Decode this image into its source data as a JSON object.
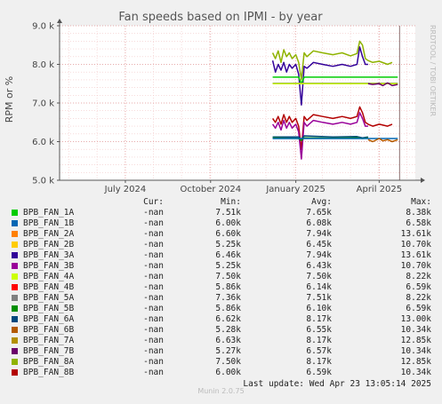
{
  "title": "Fan speeds based on IPMI - by year",
  "ylabel": "RPM or %",
  "watermark": "RRDTOOL / TOBI OETIKER",
  "footer_brand": "Munin 2.0.75",
  "last_update": "Last update: Wed Apr 23 13:05:14 2025",
  "legend_headers": {
    "cur": "Cur:",
    "min": "Min:",
    "avg": "Avg:",
    "max": "Max:"
  },
  "legend": [
    {
      "name": "BPB_FAN_1A",
      "color": "#00cc00",
      "cur": "-nan",
      "min": "7.51k",
      "avg": "7.65k",
      "max": "8.38k"
    },
    {
      "name": "BPB_FAN_1B",
      "color": "#0066b3",
      "cur": "-nan",
      "min": "6.00k",
      "avg": "6.08k",
      "max": "6.58k"
    },
    {
      "name": "BPB_FAN_2A",
      "color": "#ff8000",
      "cur": "-nan",
      "min": "6.60k",
      "avg": "7.94k",
      "max": "13.61k"
    },
    {
      "name": "BPB_FAN_2B",
      "color": "#ffcc00",
      "cur": "-nan",
      "min": "5.25k",
      "avg": "6.45k",
      "max": "10.70k"
    },
    {
      "name": "BPB_FAN_3A",
      "color": "#330099",
      "cur": "-nan",
      "min": "6.46k",
      "avg": "7.94k",
      "max": "13.61k"
    },
    {
      "name": "BPB_FAN_3B",
      "color": "#990099",
      "cur": "-nan",
      "min": "5.25k",
      "avg": "6.43k",
      "max": "10.70k"
    },
    {
      "name": "BPB_FAN_4A",
      "color": "#ccff00",
      "cur": "-nan",
      "min": "7.50k",
      "avg": "7.50k",
      "max": "8.22k"
    },
    {
      "name": "BPB_FAN_4B",
      "color": "#ff0000",
      "cur": "-nan",
      "min": "5.86k",
      "avg": "6.14k",
      "max": "6.59k"
    },
    {
      "name": "BPB_FAN_5A",
      "color": "#808080",
      "cur": "-nan",
      "min": "7.36k",
      "avg": "7.51k",
      "max": "8.22k"
    },
    {
      "name": "BPB_FAN_5B",
      "color": "#008f00",
      "cur": "-nan",
      "min": "5.86k",
      "avg": "6.10k",
      "max": "6.59k"
    },
    {
      "name": "BPB_FAN_6A",
      "color": "#00487d",
      "cur": "-nan",
      "min": "6.62k",
      "avg": "8.17k",
      "max": "13.00k"
    },
    {
      "name": "BPB_FAN_6B",
      "color": "#b35a00",
      "cur": "-nan",
      "min": "5.28k",
      "avg": "6.55k",
      "max": "10.34k"
    },
    {
      "name": "BPB_FAN_7A",
      "color": "#b38f00",
      "cur": "-nan",
      "min": "6.63k",
      "avg": "8.17k",
      "max": "12.85k"
    },
    {
      "name": "BPB_FAN_7B",
      "color": "#6b006b",
      "cur": "-nan",
      "min": "5.27k",
      "avg": "6.57k",
      "max": "10.34k"
    },
    {
      "name": "BPB_FAN_8A",
      "color": "#8fb300",
      "cur": "-nan",
      "min": "7.50k",
      "avg": "8.17k",
      "max": "12.85k"
    },
    {
      "name": "BPB_FAN_8B",
      "color": "#b30000",
      "cur": "-nan",
      "min": "6.00k",
      "avg": "6.59k",
      "max": "10.34k"
    }
  ],
  "chart_data": {
    "type": "line",
    "title": "Fan speeds based on IPMI - by year",
    "xlabel": "",
    "ylabel": "RPM or %",
    "ylim": [
      5000,
      9000
    ],
    "y_ticks": [
      5000,
      6000,
      7000,
      8000,
      9000
    ],
    "y_tick_labels": [
      "5.0 k",
      "6.0 k",
      "7.0 k",
      "8.0 k",
      "9.0 k"
    ],
    "xlim": [
      "2024-04-21",
      "2025-05-10"
    ],
    "x_ticks": [
      "2024-07-01",
      "2024-10-01",
      "2025-01-01",
      "2025-04-01"
    ],
    "x_tick_labels": [
      "July 2024",
      "October 2024",
      "January 2025",
      "April 2025"
    ],
    "grid": true,
    "now_marker": "2025-04-23",
    "series": [
      {
        "name": "BPB_FAN_8A",
        "color": "#8fb300",
        "x": [
          "2024-12-07",
          "2024-12-10",
          "2024-12-13",
          "2024-12-16",
          "2024-12-19",
          "2024-12-22",
          "2024-12-25",
          "2024-12-28",
          "2025-01-01",
          "2025-01-04",
          "2025-01-07",
          "2025-01-10",
          "2025-01-13",
          "2025-01-20",
          "2025-01-30",
          "2025-02-10",
          "2025-02-20",
          "2025-03-01",
          "2025-03-08",
          "2025-03-11",
          "2025-03-14",
          "2025-03-17",
          "2025-03-20",
          "2025-03-25",
          "2025-04-01",
          "2025-04-10",
          "2025-04-15"
        ],
        "y": [
          8300,
          8150,
          8350,
          8050,
          8380,
          8200,
          8300,
          8150,
          8250,
          8050,
          7600,
          8300,
          8200,
          8350,
          8300,
          8250,
          8300,
          8220,
          8280,
          8600,
          8500,
          8150,
          8100,
          8050,
          8080,
          8000,
          8050
        ]
      },
      {
        "name": "BPB_FAN_3A",
        "color": "#330099",
        "x": [
          "2024-12-07",
          "2024-12-10",
          "2024-12-13",
          "2024-12-16",
          "2024-12-19",
          "2024-12-22",
          "2024-12-25",
          "2024-12-28",
          "2025-01-01",
          "2025-01-04",
          "2025-01-07",
          "2025-01-10",
          "2025-01-13",
          "2025-01-20",
          "2025-01-30",
          "2025-02-10",
          "2025-02-20",
          "2025-03-01",
          "2025-03-08",
          "2025-03-11",
          "2025-03-14",
          "2025-03-17",
          "2025-03-20"
        ],
        "y": [
          8100,
          7800,
          8000,
          7850,
          8050,
          7800,
          8000,
          7900,
          8000,
          7750,
          6950,
          7950,
          7900,
          8050,
          8000,
          7950,
          8000,
          7950,
          8000,
          8450,
          8200,
          8000,
          8000
        ]
      },
      {
        "name": "BPB_FAN_1A",
        "color": "#00cc00",
        "x": [
          "2024-12-07",
          "2025-01-04",
          "2025-01-07",
          "2025-01-10",
          "2025-04-21"
        ],
        "y": [
          7670,
          7670,
          7500,
          7670,
          7670
        ]
      },
      {
        "name": "BPB_FAN_5A",
        "color": "#808080",
        "x": [
          "2024-12-07",
          "2025-04-21"
        ],
        "y": [
          7510,
          7510
        ]
      },
      {
        "name": "BPB_FAN_4A",
        "color": "#ccff00",
        "x": [
          "2024-12-07",
          "2025-04-21"
        ],
        "y": [
          7500,
          7500
        ]
      },
      {
        "name": "BPB_FAN_7B",
        "color": "#6b006b",
        "x": [
          "2025-03-20",
          "2025-03-25",
          "2025-04-01",
          "2025-04-05",
          "2025-04-10",
          "2025-04-15",
          "2025-04-21"
        ],
        "y": [
          7500,
          7480,
          7500,
          7450,
          7520,
          7450,
          7480
        ]
      },
      {
        "name": "BPB_FAN_8B",
        "color": "#b30000",
        "x": [
          "2024-12-07",
          "2024-12-10",
          "2024-12-13",
          "2024-12-16",
          "2024-12-19",
          "2024-12-22",
          "2024-12-25",
          "2024-12-28",
          "2025-01-01",
          "2025-01-04",
          "2025-01-07",
          "2025-01-10",
          "2025-01-13",
          "2025-01-20",
          "2025-01-30",
          "2025-02-10",
          "2025-02-20",
          "2025-03-01",
          "2025-03-08",
          "2025-03-11",
          "2025-03-14",
          "2025-03-17",
          "2025-03-20",
          "2025-03-25",
          "2025-04-01",
          "2025-04-10",
          "2025-04-15"
        ],
        "y": [
          6600,
          6500,
          6650,
          6450,
          6700,
          6500,
          6650,
          6500,
          6600,
          6400,
          5800,
          6650,
          6550,
          6700,
          6650,
          6600,
          6650,
          6600,
          6650,
          6900,
          6750,
          6500,
          6450,
          6400,
          6450,
          6400,
          6450
        ]
      },
      {
        "name": "BPB_FAN_3B",
        "color": "#990099",
        "x": [
          "2024-12-07",
          "2024-12-10",
          "2024-12-13",
          "2024-12-16",
          "2024-12-19",
          "2024-12-22",
          "2024-12-25",
          "2024-12-28",
          "2025-01-01",
          "2025-01-04",
          "2025-01-07",
          "2025-01-10",
          "2025-01-13",
          "2025-01-20",
          "2025-01-30",
          "2025-02-10",
          "2025-02-20",
          "2025-03-01",
          "2025-03-08",
          "2025-03-11",
          "2025-03-14",
          "2025-03-17",
          "2025-03-20"
        ],
        "y": [
          6450,
          6350,
          6500,
          6300,
          6550,
          6350,
          6500,
          6350,
          6450,
          6250,
          5550,
          6500,
          6400,
          6550,
          6500,
          6450,
          6500,
          6450,
          6500,
          6750,
          6600,
          6400,
          6400
        ]
      },
      {
        "name": "BPB_FAN_6A",
        "color": "#00487d",
        "x": [
          "2024-12-07",
          "2025-01-04",
          "2025-01-07",
          "2025-01-10",
          "2025-02-10",
          "2025-03-08",
          "2025-03-14",
          "2025-03-20"
        ],
        "y": [
          6120,
          6120,
          6050,
          6150,
          6120,
          6130,
          6100,
          6120
        ]
      },
      {
        "name": "BPB_FAN_5B",
        "color": "#008f00",
        "x": [
          "2024-12-07",
          "2025-01-04",
          "2025-01-07",
          "2025-01-10",
          "2025-02-10",
          "2025-03-08",
          "2025-03-14",
          "2025-03-20"
        ],
        "y": [
          6100,
          6080,
          6030,
          6100,
          6090,
          6100,
          6080,
          6100
        ]
      },
      {
        "name": "BPB_FAN_1B",
        "color": "#0066b3",
        "x": [
          "2024-12-07",
          "2025-04-21"
        ],
        "y": [
          6080,
          6080
        ]
      },
      {
        "name": "BPB_FAN_6B",
        "color": "#b35a00",
        "x": [
          "2025-03-20",
          "2025-03-25",
          "2025-04-01",
          "2025-04-05",
          "2025-04-10",
          "2025-04-15",
          "2025-04-21"
        ],
        "y": [
          6050,
          6000,
          6080,
          6020,
          6050,
          6000,
          6050
        ]
      }
    ]
  }
}
